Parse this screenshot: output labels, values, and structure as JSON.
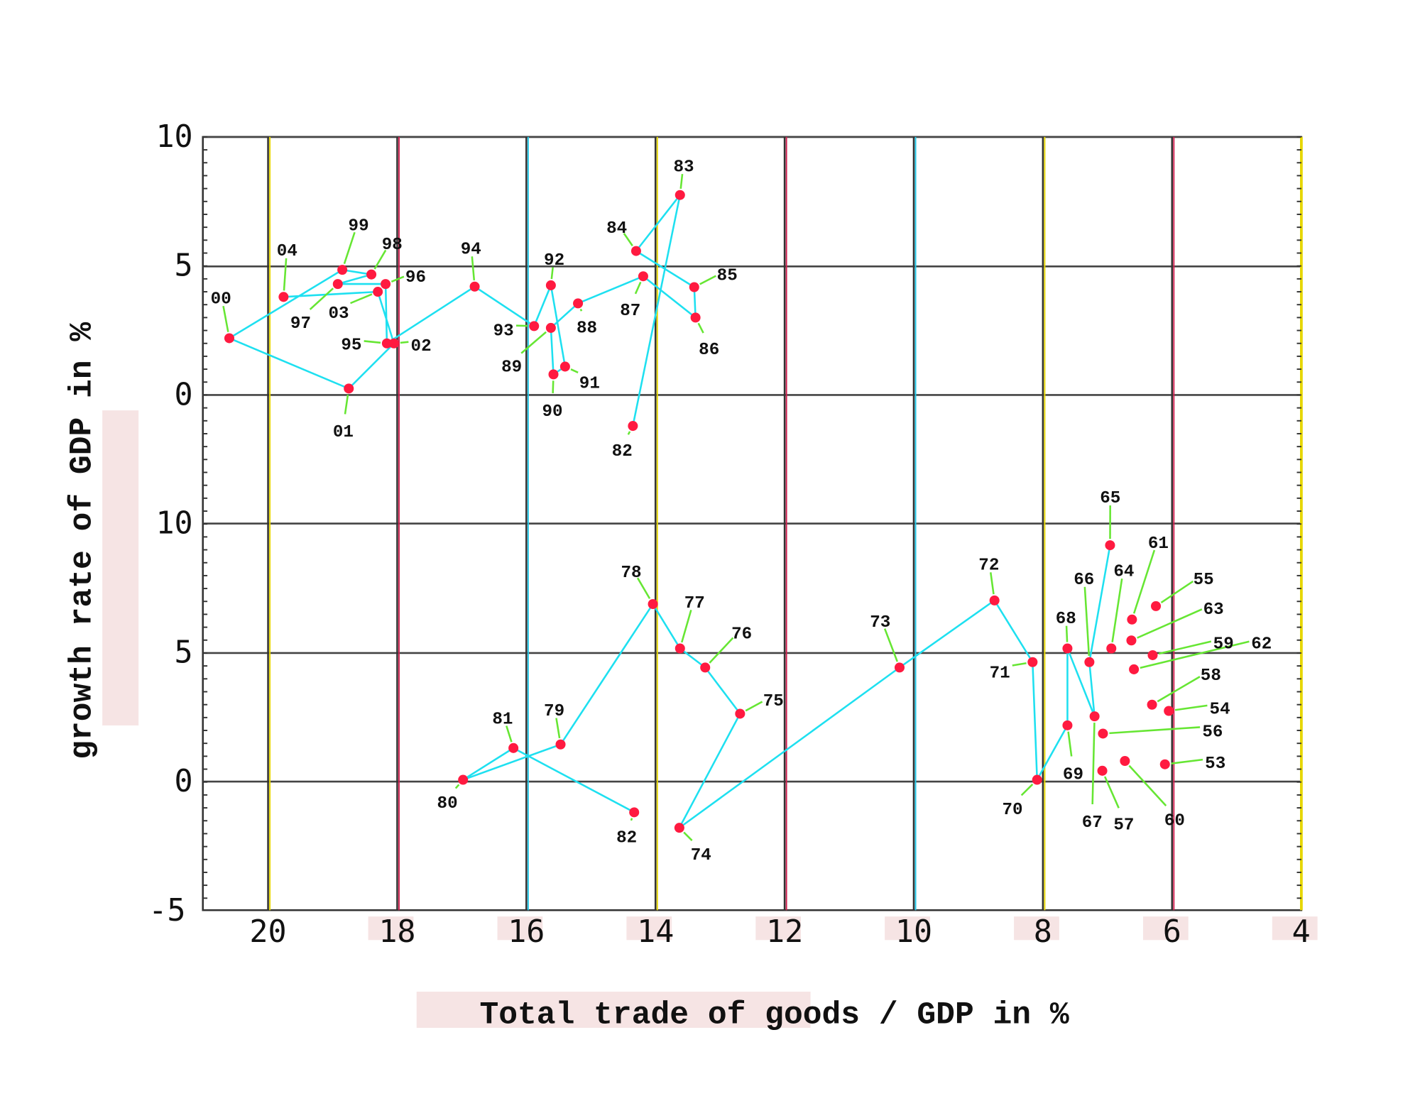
{
  "chart_data": {
    "type": "scatter",
    "xlabel": "Total trade of goods / GDP in %",
    "ylabel": "growth rate of GDP in %",
    "xlim": [
      21,
      4
    ],
    "x_ticks": [
      "20",
      "18",
      "16",
      "14",
      "12",
      "10",
      "8",
      "6",
      "4"
    ],
    "x_tick_values": [
      20,
      18,
      16,
      14,
      12,
      10,
      8,
      6,
      4
    ],
    "grid": true,
    "colors": {
      "point": "#ff1a40",
      "path": "#1ee0f0",
      "leader": "#66e633",
      "grid": "#333333"
    },
    "panels": [
      {
        "name": "upper",
        "ylim": [
          -5,
          10
        ],
        "y_ticks": [
          "10",
          "5",
          "0"
        ],
        "y_tick_values": [
          10,
          5,
          0
        ],
        "path_order": [
          "82",
          "83",
          "84",
          "85",
          "86",
          "87",
          "88",
          "89",
          "90",
          "91",
          "92",
          "93",
          "94",
          "95",
          "96",
          "97",
          "98",
          "99",
          "00",
          "01",
          "02",
          "03",
          "04"
        ],
        "points": [
          {
            "label": "82",
            "x": 14.35,
            "y": -1.2
          },
          {
            "label": "83",
            "x": 13.62,
            "y": 7.75
          },
          {
            "label": "84",
            "x": 14.3,
            "y": 5.58
          },
          {
            "label": "85",
            "x": 13.4,
            "y": 4.18
          },
          {
            "label": "86",
            "x": 13.38,
            "y": 3.0
          },
          {
            "label": "87",
            "x": 14.19,
            "y": 4.6
          },
          {
            "label": "88",
            "x": 15.2,
            "y": 3.55
          },
          {
            "label": "89",
            "x": 15.62,
            "y": 2.6
          },
          {
            "label": "90",
            "x": 15.58,
            "y": 0.8
          },
          {
            "label": "91",
            "x": 15.4,
            "y": 1.1
          },
          {
            "label": "92",
            "x": 15.62,
            "y": 4.25
          },
          {
            "label": "93",
            "x": 15.88,
            "y": 2.67
          },
          {
            "label": "94",
            "x": 16.8,
            "y": 4.2
          },
          {
            "label": "95",
            "x": 18.16,
            "y": 2.0
          },
          {
            "label": "96",
            "x": 18.18,
            "y": 4.3
          },
          {
            "label": "97",
            "x": 18.92,
            "y": 4.3
          },
          {
            "label": "98",
            "x": 18.4,
            "y": 4.67
          },
          {
            "label": "99",
            "x": 18.85,
            "y": 4.85
          },
          {
            "label": "00",
            "x": 20.6,
            "y": 2.2
          },
          {
            "label": "01",
            "x": 18.75,
            "y": 0.25
          },
          {
            "label": "02",
            "x": 18.05,
            "y": 2.0
          },
          {
            "label": "03",
            "x": 18.3,
            "y": 4.0
          },
          {
            "label": "04",
            "x": 19.76,
            "y": 3.8
          }
        ]
      },
      {
        "name": "lower",
        "ylim": [
          -5,
          10
        ],
        "y_ticks": [
          "10",
          "5",
          "0",
          "-5"
        ],
        "y_tick_values": [
          10,
          5,
          0,
          -5
        ],
        "path_order": [
          "65",
          "66",
          "67",
          "68",
          "69",
          "70",
          "71",
          "72",
          "73",
          "74",
          "75",
          "76",
          "77",
          "78",
          "79",
          "80",
          "81",
          "82"
        ],
        "points": [
          {
            "label": "53",
            "x": 6.11,
            "y": 0.67
          },
          {
            "label": "54",
            "x": 6.05,
            "y": 2.74
          },
          {
            "label": "55",
            "x": 6.25,
            "y": 6.8
          },
          {
            "label": "56",
            "x": 7.07,
            "y": 1.86
          },
          {
            "label": "57",
            "x": 7.08,
            "y": 0.42
          },
          {
            "label": "58",
            "x": 6.31,
            "y": 2.98
          },
          {
            "label": "59",
            "x": 6.3,
            "y": 4.9
          },
          {
            "label": "60",
            "x": 6.73,
            "y": 0.8
          },
          {
            "label": "61",
            "x": 6.62,
            "y": 6.28
          },
          {
            "label": "62",
            "x": 6.59,
            "y": 4.35
          },
          {
            "label": "63",
            "x": 6.63,
            "y": 5.47
          },
          {
            "label": "64",
            "x": 6.94,
            "y": 5.16
          },
          {
            "label": "65",
            "x": 6.96,
            "y": 9.16
          },
          {
            "label": "66",
            "x": 7.28,
            "y": 4.63
          },
          {
            "label": "67",
            "x": 7.2,
            "y": 2.53
          },
          {
            "label": "68",
            "x": 7.62,
            "y": 5.16
          },
          {
            "label": "69",
            "x": 7.62,
            "y": 2.18
          },
          {
            "label": "70",
            "x": 8.09,
            "y": 0.07
          },
          {
            "label": "71",
            "x": 8.16,
            "y": 4.63
          },
          {
            "label": "72",
            "x": 8.75,
            "y": 7.02
          },
          {
            "label": "73",
            "x": 10.22,
            "y": 4.42
          },
          {
            "label": "74",
            "x": 13.63,
            "y": -1.79
          },
          {
            "label": "75",
            "x": 12.69,
            "y": 2.63
          },
          {
            "label": "76",
            "x": 13.23,
            "y": 4.42
          },
          {
            "label": "77",
            "x": 13.62,
            "y": 5.16
          },
          {
            "label": "78",
            "x": 14.04,
            "y": 6.88
          },
          {
            "label": "79",
            "x": 15.47,
            "y": 1.44
          },
          {
            "label": "80",
            "x": 16.98,
            "y": 0.07
          },
          {
            "label": "81",
            "x": 16.2,
            "y": 1.3
          },
          {
            "label": "82",
            "x": 14.33,
            "y": -1.19
          }
        ]
      }
    ]
  }
}
